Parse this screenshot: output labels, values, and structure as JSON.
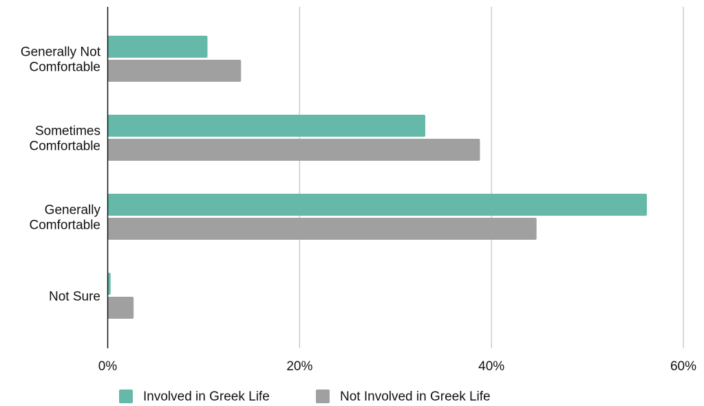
{
  "chart_data": {
    "type": "bar",
    "orientation": "horizontal",
    "categories": [
      [
        "Generally Not",
        "Comfortable"
      ],
      [
        "Sometimes",
        "Comfortable"
      ],
      [
        "Generally",
        "Comfortable"
      ],
      [
        "Not Sure"
      ]
    ],
    "series": [
      {
        "name": "Involved in Greek Life",
        "color": "#66b8a8",
        "values": [
          10.4,
          33.1,
          56.2,
          0.3
        ]
      },
      {
        "name": "Not Involved in Greek Life",
        "color": "#a0a0a0",
        "values": [
          13.9,
          38.8,
          44.7,
          2.7
        ]
      }
    ],
    "x_ticks": [
      "0%",
      "20%",
      "40%",
      "60%"
    ],
    "x_tick_values": [
      0,
      20,
      40,
      60
    ],
    "xlim": [
      0,
      60
    ],
    "grid": "vertical",
    "legend_position": "bottom"
  }
}
